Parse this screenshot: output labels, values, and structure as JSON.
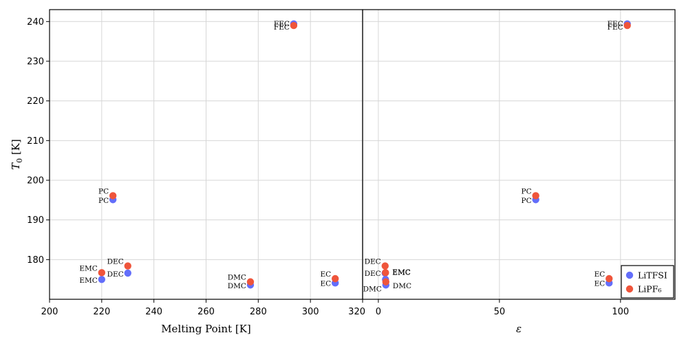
{
  "chart_data": [
    {
      "type": "scatter",
      "xlabel": "Melting Point [K]",
      "ylabel": "T_0 [K]",
      "xlim": [
        200,
        320
      ],
      "ylim": [
        170,
        243
      ],
      "xticks": [
        200,
        220,
        240,
        260,
        280,
        300,
        320
      ],
      "yticks": [
        180,
        190,
        200,
        210,
        220,
        230,
        240
      ],
      "grid": true,
      "series": [
        {
          "name": "LiTFSI",
          "color": "#636efa",
          "points": [
            {
              "label": "FEC",
              "x": 293.6,
              "y": 239.4
            },
            {
              "label": "PC",
              "x": 224.3,
              "y": 195.1
            },
            {
              "label": "EMC",
              "x": 220.0,
              "y": 175.0
            },
            {
              "label": "DEC",
              "x": 230.0,
              "y": 176.6
            },
            {
              "label": "DMC",
              "x": 277.0,
              "y": 173.6
            },
            {
              "label": "EC",
              "x": 309.5,
              "y": 174.1
            }
          ]
        },
        {
          "name": "LiPF₆",
          "color": "#ef553b",
          "points": [
            {
              "label": "FEC",
              "x": 293.6,
              "y": 239.0
            },
            {
              "label": "PC",
              "x": 224.3,
              "y": 196.1
            },
            {
              "label": "EMC",
              "x": 220.0,
              "y": 176.7
            },
            {
              "label": "DEC",
              "x": 230.0,
              "y": 178.4
            },
            {
              "label": "DMC",
              "x": 277.0,
              "y": 174.4
            },
            {
              "label": "EC",
              "x": 309.5,
              "y": 175.2
            }
          ]
        }
      ]
    },
    {
      "type": "scatter",
      "xlabel": "ε",
      "xlim": [
        -6.5,
        122.5
      ],
      "ylim": [
        170,
        243
      ],
      "xticks": [
        0,
        50,
        100
      ],
      "yticks": [
        180,
        190,
        200,
        210,
        220,
        230,
        240
      ],
      "grid": true,
      "legend": "bottom-right",
      "series": [
        {
          "name": "LiTFSI",
          "color": "#636efa",
          "points": [
            {
              "label": "FEC",
              "x": 102.8,
              "y": 239.4
            },
            {
              "label": "PC",
              "x": 65.0,
              "y": 195.1
            },
            {
              "label": "EMC",
              "x": 2.96,
              "y": 175.0
            },
            {
              "label": "DEC",
              "x": 2.8,
              "y": 176.6
            },
            {
              "label": "DMC",
              "x": 3.1,
              "y": 173.6
            },
            {
              "label": "EC",
              "x": 95.3,
              "y": 174.1
            }
          ]
        },
        {
          "name": "LiPF₆",
          "color": "#ef553b",
          "points": [
            {
              "label": "FEC",
              "x": 102.8,
              "y": 239.0
            },
            {
              "label": "PC",
              "x": 65.0,
              "y": 196.1
            },
            {
              "label": "EMC",
              "x": 2.96,
              "y": 176.7
            },
            {
              "label": "DEC",
              "x": 2.8,
              "y": 178.4
            },
            {
              "label": "DMC",
              "x": 3.1,
              "y": 174.4
            },
            {
              "label": "EC",
              "x": 95.3,
              "y": 175.2
            }
          ]
        }
      ]
    }
  ]
}
